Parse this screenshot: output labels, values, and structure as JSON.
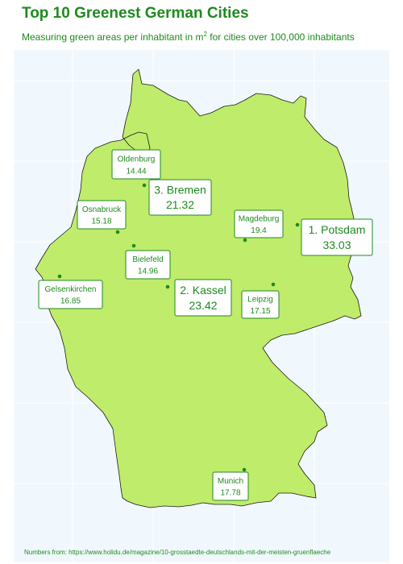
{
  "title": "Top 10 Greenest German Cities",
  "subtitle": {
    "before": "Measuring green areas per inhabitant in m",
    "superscript": "2",
    "after": " for cities over 100,000 inhabitants"
  },
  "caption": "Numbers from: https://www.holidu.de/magazine/10-grosstaedte-deutschlands-mit-der-meisten-gruenflaeche",
  "colors": {
    "land": "#bfec6b",
    "accent": "#1f8a1f",
    "panel": "#f1f8fd"
  },
  "cities": [
    {
      "name": "Potsdam",
      "label": "1. Potsdam",
      "value": "33.03",
      "rank": 1
    },
    {
      "name": "Kassel",
      "label": "2. Kassel",
      "value": "23.42",
      "rank": 2
    },
    {
      "name": "Bremen",
      "label": "3. Bremen",
      "value": "21.32",
      "rank": 3
    },
    {
      "name": "Magdeburg",
      "label": "Magdeburg",
      "value": "19.4"
    },
    {
      "name": "Munich",
      "label": "Munich",
      "value": "17.78"
    },
    {
      "name": "Leipzig",
      "label": "Leipzig",
      "value": "17.15"
    },
    {
      "name": "Gelsenkirchen",
      "label": "Gelsenkirchen",
      "value": "16.85"
    },
    {
      "name": "Osnabruck",
      "label": "Osnabruck",
      "value": "15.18"
    },
    {
      "name": "Bielefeld",
      "label": "Bielefeld",
      "value": "14.96"
    },
    {
      "name": "Oldenburg",
      "label": "Oldenburg",
      "value": "14.44"
    }
  ]
}
